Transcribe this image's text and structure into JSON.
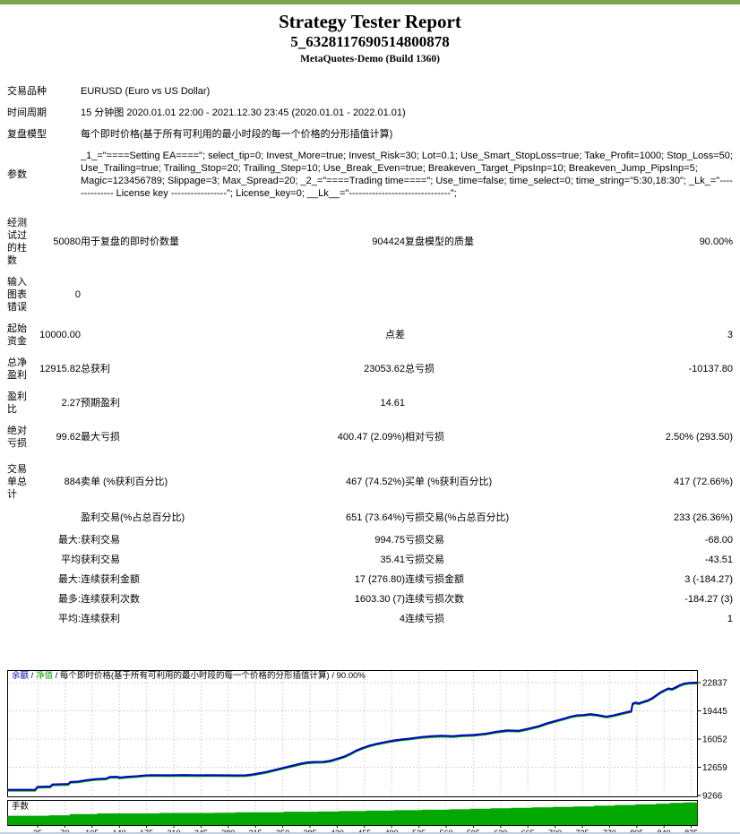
{
  "page": {
    "accent_color": "#7CA74F"
  },
  "header": {
    "title": "Strategy Tester Report",
    "ea_name": "5_6328117690514800878",
    "server_build": "MetaQuotes-Demo (Build 1360)"
  },
  "table": {
    "rows": [
      {
        "type": "info",
        "label": "交易品种",
        "value": "EURUSD (Euro vs US Dollar)"
      },
      {
        "type": "info",
        "label": "时间周期",
        "value": "15 分钟图 2020.01.01 22:00 - 2021.12.30 23:45 (2020.01.01 - 2022.01.01)"
      },
      {
        "type": "info",
        "label": "复盘模型",
        "value": "每个即时价格(基于所有可利用的最小时段的每一个价格的分形插值计算)"
      },
      {
        "type": "info",
        "label": "参数",
        "value": "_1_=\"====Setting EA====\"; select_tip=0; Invest_More=true; Invest_Risk=30; Lot=0.1; Use_Smart_StopLoss=true; Take_Profit=1000; Stop_Loss=50; Use_Trailing=true; Trailing_Stop=20; Trailing_Step=10; Use_Break_Even=true; Breakeven_Target_PipsInp=10; Breakeven_Jump_PipsInp=5; Magic=123456789; Slippage=3; Max_Spread=20; _2_=\"====Trading time====\"; Use_time=false; time_select=0; time_string=\"5:30,18:30\"; _Lk_=\"-------------- License key -----------------\"; License_key=0; __Lk__=\"-------------------------------\";"
      },
      {
        "type": "stat",
        "cells": [
          "经测试过的柱数",
          "50080",
          "用于复盘的即时价数量",
          "904424",
          "复盘模型的质量",
          "90.00%"
        ]
      },
      {
        "type": "stat",
        "cells": [
          "输入图表错误",
          "0",
          "",
          "",
          "",
          ""
        ]
      },
      {
        "type": "stat",
        "cells": [
          "起始资金",
          "10000.00",
          "",
          "点差",
          "",
          "3"
        ]
      },
      {
        "type": "stat",
        "cells": [
          "总净盈利",
          "12915.82",
          "总获利",
          "23053.62",
          "总亏损",
          "-10137.80"
        ]
      },
      {
        "type": "stat",
        "cells": [
          "盈利比",
          "2.27",
          "预期盈利",
          "14.61",
          "",
          ""
        ]
      },
      {
        "type": "stat",
        "cells": [
          "绝对亏损",
          "99.62",
          "最大亏损",
          "400.47 (2.09%)",
          "相对亏损",
          "2.50% (293.50)"
        ]
      },
      {
        "type": "stat",
        "cells": [
          "交易单总计",
          "884",
          "卖单 (%获利百分比)",
          "467 (74.52%)",
          "买单 (%获利百分比)",
          "417 (72.66%)"
        ]
      },
      {
        "type": "stat",
        "cells": [
          "",
          "",
          "盈利交易(%占总百分比)",
          "651 (73.64%)",
          "亏损交易(%占总百分比)",
          "233 (26.36%)"
        ]
      },
      {
        "type": "stat",
        "cells": [
          "",
          "最大:",
          "获利交易",
          "994.75",
          "亏损交易",
          "-68.00"
        ]
      },
      {
        "type": "stat",
        "cells": [
          "",
          "平均",
          "获利交易",
          "35.41",
          "亏损交易",
          "-43.51"
        ]
      },
      {
        "type": "stat",
        "cells": [
          "",
          "最大:",
          "连续获利金额",
          "17 (276.80)",
          "连续亏损金额",
          "3 (-184.27)"
        ]
      },
      {
        "type": "stat",
        "cells": [
          "",
          "最多:",
          "连续获利次数",
          "1603.30 (7)",
          "连续亏损次数",
          "-184.27 (3)"
        ]
      },
      {
        "type": "stat",
        "cells": [
          "",
          "平均:",
          "连续获利",
          "4",
          "连续亏损",
          "1"
        ]
      }
    ]
  },
  "chart_data": {
    "type": "line",
    "legend_balance": "余额",
    "legend_equity": "净值",
    "legend_rest": "每个即时价格(基于所有可利用的最小时段的每一个价格的分形插值计算) / 90.00%",
    "lots_label": "手数",
    "y_ticks": [
      22837,
      19445,
      16052,
      12659,
      9266
    ],
    "y_range": [
      9266,
      22837
    ],
    "total_trades": 884,
    "balance_color": "#0000C8",
    "equity_color": "#00A000",
    "lots_color": "#00A800",
    "grid_color": "#C8C8C8",
    "balance_points": [
      [
        0.0,
        9950
      ],
      [
        0.04,
        9950
      ],
      [
        0.043,
        10300
      ],
      [
        0.062,
        10350
      ],
      [
        0.065,
        10600
      ],
      [
        0.088,
        10650
      ],
      [
        0.091,
        10900
      ],
      [
        0.103,
        10950
      ],
      [
        0.109,
        11050
      ],
      [
        0.118,
        11150
      ],
      [
        0.128,
        11250
      ],
      [
        0.143,
        11300
      ],
      [
        0.148,
        11500
      ],
      [
        0.158,
        11520
      ],
      [
        0.163,
        11430
      ],
      [
        0.173,
        11520
      ],
      [
        0.188,
        11600
      ],
      [
        0.198,
        11680
      ],
      [
        0.208,
        11720
      ],
      [
        0.235,
        11700
      ],
      [
        0.255,
        11730
      ],
      [
        0.275,
        11700
      ],
      [
        0.295,
        11720
      ],
      [
        0.315,
        11700
      ],
      [
        0.33,
        11690
      ],
      [
        0.345,
        11700
      ],
      [
        0.355,
        11800
      ],
      [
        0.365,
        11950
      ],
      [
        0.375,
        12100
      ],
      [
        0.385,
        12300
      ],
      [
        0.395,
        12500
      ],
      [
        0.405,
        12700
      ],
      [
        0.415,
        12900
      ],
      [
        0.425,
        13100
      ],
      [
        0.435,
        13250
      ],
      [
        0.445,
        13300
      ],
      [
        0.458,
        13320
      ],
      [
        0.468,
        13450
      ],
      [
        0.478,
        13700
      ],
      [
        0.488,
        13950
      ],
      [
        0.497,
        14300
      ],
      [
        0.506,
        14700
      ],
      [
        0.515,
        15000
      ],
      [
        0.524,
        15250
      ],
      [
        0.533,
        15450
      ],
      [
        0.545,
        15650
      ],
      [
        0.557,
        15850
      ],
      [
        0.57,
        16000
      ],
      [
        0.584,
        16120
      ],
      [
        0.6,
        16300
      ],
      [
        0.615,
        16400
      ],
      [
        0.63,
        16450
      ],
      [
        0.645,
        16400
      ],
      [
        0.66,
        16500
      ],
      [
        0.675,
        16550
      ],
      [
        0.693,
        16700
      ],
      [
        0.71,
        16950
      ],
      [
        0.725,
        17100
      ],
      [
        0.741,
        17050
      ],
      [
        0.755,
        17300
      ],
      [
        0.77,
        17600
      ],
      [
        0.782,
        17950
      ],
      [
        0.795,
        18250
      ],
      [
        0.808,
        18550
      ],
      [
        0.816,
        18750
      ],
      [
        0.825,
        18900
      ],
      [
        0.835,
        18950
      ],
      [
        0.845,
        19050
      ],
      [
        0.855,
        18950
      ],
      [
        0.868,
        18750
      ],
      [
        0.878,
        18900
      ],
      [
        0.888,
        19100
      ],
      [
        0.898,
        19300
      ],
      [
        0.904,
        19400
      ],
      [
        0.906,
        20300
      ],
      [
        0.91,
        20450
      ],
      [
        0.915,
        20350
      ],
      [
        0.92,
        20500
      ],
      [
        0.928,
        20700
      ],
      [
        0.935,
        21000
      ],
      [
        0.94,
        21300
      ],
      [
        0.947,
        21700
      ],
      [
        0.953,
        21950
      ],
      [
        0.958,
        22150
      ],
      [
        0.963,
        22050
      ],
      [
        0.968,
        22250
      ],
      [
        0.975,
        22550
      ],
      [
        0.982,
        22750
      ],
      [
        0.99,
        22820
      ],
      [
        1.0,
        22837
      ]
    ],
    "equity_dips": [
      [
        0.11,
        -220
      ],
      [
        0.21,
        -90
      ],
      [
        0.3,
        -100
      ],
      [
        0.37,
        -130
      ],
      [
        0.47,
        -140
      ],
      [
        0.56,
        -160
      ]
    ],
    "lots_steps": [
      [
        0.0,
        0.4
      ],
      [
        0.06,
        0.42
      ],
      [
        0.09,
        0.47
      ],
      [
        0.13,
        0.5
      ],
      [
        0.22,
        0.52
      ],
      [
        0.3,
        0.53
      ],
      [
        0.33,
        0.55
      ],
      [
        0.4,
        0.57
      ],
      [
        0.45,
        0.58
      ],
      [
        0.48,
        0.6
      ],
      [
        0.52,
        0.62
      ],
      [
        0.56,
        0.64
      ],
      [
        0.6,
        0.66
      ],
      [
        0.64,
        0.68
      ],
      [
        0.67,
        0.7
      ],
      [
        0.7,
        0.72
      ],
      [
        0.73,
        0.74
      ],
      [
        0.76,
        0.76
      ],
      [
        0.79,
        0.78
      ],
      [
        0.82,
        0.8
      ],
      [
        0.85,
        0.83
      ],
      [
        0.88,
        0.86
      ],
      [
        0.91,
        0.89
      ],
      [
        0.94,
        0.92
      ],
      [
        0.96,
        0.95
      ],
      [
        0.98,
        0.97
      ],
      [
        1.0,
        0.97
      ]
    ],
    "x_tick_labels": [
      "35",
      "70",
      "105",
      "140",
      "175",
      "210",
      "245",
      "280",
      "315",
      "350",
      "385",
      "420",
      "455",
      "490",
      "525",
      "560",
      "595",
      "630",
      "665",
      "700",
      "735",
      "770",
      "805",
      "840",
      "875"
    ]
  }
}
